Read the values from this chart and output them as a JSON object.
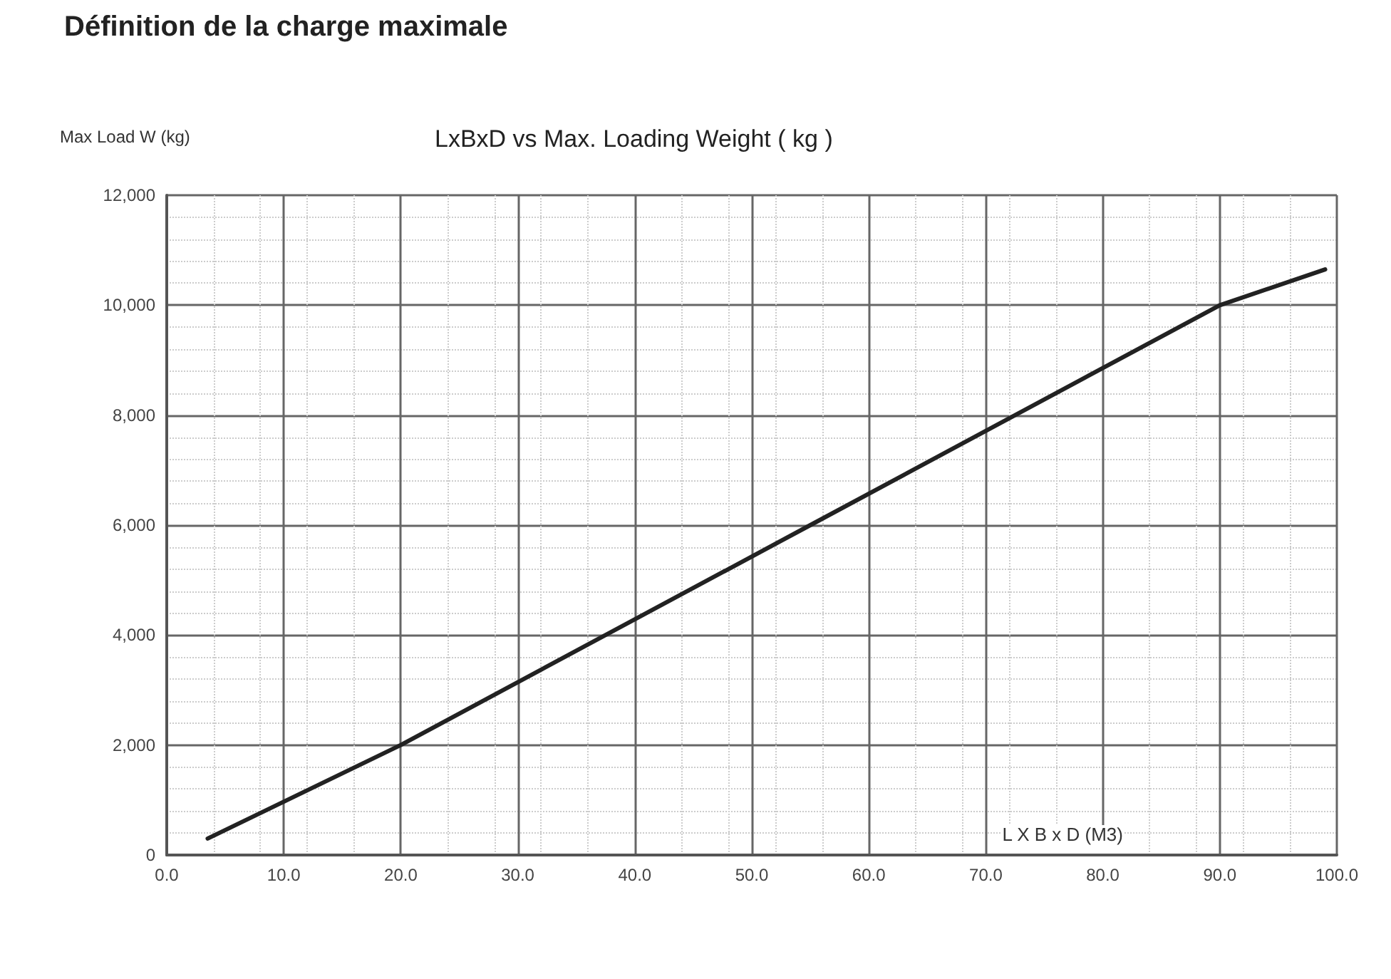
{
  "chart_data": {
    "type": "line",
    "title": "LxBxD vs Max. Loading Weight ( kg )",
    "subtitle": "Définition de la charge maximale",
    "xlabel": "L X B x D (M3)",
    "ylabel": "Max Load W (kg)",
    "x": [
      3.5,
      20,
      55,
      90,
      99
    ],
    "series": [
      {
        "color": "#222222",
        "values": [
          300,
          2000,
          6000,
          10000,
          10650
        ]
      }
    ],
    "xlim": [
      0,
      100
    ],
    "xticks": [
      {
        "value": 0,
        "label": "0.0"
      },
      {
        "value": 10,
        "label": "10.0"
      },
      {
        "value": 20,
        "label": "20.0"
      },
      {
        "value": 30,
        "label": "30.0"
      },
      {
        "value": 40,
        "label": "40.0"
      },
      {
        "value": 50,
        "label": "50.0"
      },
      {
        "value": 60,
        "label": "60.0"
      },
      {
        "value": 70,
        "label": "70.0"
      },
      {
        "value": 80,
        "label": "80.0"
      },
      {
        "value": 90,
        "label": "90.0"
      },
      {
        "value": 100,
        "label": "100.0"
      }
    ],
    "ylim": [
      0,
      12000
    ],
    "yticks": [
      0,
      {
        "value": 2000,
        "label": "2,000"
      },
      {
        "value": 4000,
        "label": "4,000"
      },
      {
        "value": 6000,
        "label": "6,000"
      },
      {
        "value": 8000,
        "label": "8,000"
      },
      {
        "value": 10000,
        "label": "10,000"
      },
      {
        "value": 12000,
        "label": "12,000"
      }
    ],
    "grid": true,
    "marker": "none",
    "line_style": "solid"
  }
}
